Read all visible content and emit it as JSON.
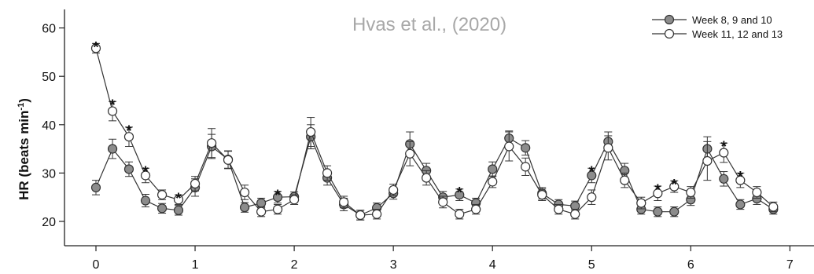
{
  "chart_data": {
    "type": "line",
    "title": "",
    "source_note": "Hvas et al., (2020)",
    "ylabel_main": "HR (beats min",
    "ylabel_sup": "-1",
    "ylabel_close": ")",
    "xlabel": "",
    "xlim": [
      -0.3,
      7.2
    ],
    "ylim": [
      17,
      65
    ],
    "xticks": [
      0,
      1,
      2,
      3,
      4,
      5,
      6,
      7
    ],
    "yticks": [
      20,
      30,
      40,
      50,
      60
    ],
    "legend_position": "top-right",
    "series": [
      {
        "name": "Week 8, 9 and 10",
        "fill": "#8c8c8c",
        "x": [
          0,
          0.167,
          0.333,
          0.5,
          0.667,
          0.833,
          1.0,
          1.167,
          1.333,
          1.5,
          1.667,
          1.833,
          2.0,
          2.167,
          2.333,
          2.5,
          2.667,
          2.833,
          3.0,
          3.167,
          3.333,
          3.5,
          3.667,
          3.833,
          4.0,
          4.167,
          4.333,
          4.5,
          4.667,
          4.833,
          5.0,
          5.167,
          5.333,
          5.5,
          5.667,
          5.833,
          6.0,
          6.167,
          6.333,
          6.5,
          6.667,
          6.833
        ],
        "y": [
          27,
          35,
          30.8,
          24.3,
          22.7,
          22.3,
          27,
          35.5,
          32.8,
          22.9,
          23.8,
          25,
          25.1,
          37.5,
          29,
          23.5,
          21.3,
          22.8,
          25.8,
          36,
          30.5,
          25,
          25.5,
          23.8,
          30.8,
          37.2,
          35.2,
          25.8,
          23.5,
          23.2,
          29.5,
          36.5,
          30.5,
          22.5,
          22,
          22,
          24.5,
          35,
          28.8,
          23.5,
          24.7,
          22.5
        ],
        "err": [
          1.5,
          2,
          1.5,
          1.3,
          1,
          1,
          1.8,
          2.5,
          1.8,
          1,
          1,
          1.2,
          1,
          2.5,
          1.5,
          1.3,
          1,
          1,
          1.2,
          2.5,
          1.5,
          1.2,
          1.2,
          1,
          1.5,
          1.5,
          1.5,
          1.2,
          1,
          1,
          1.5,
          2,
          1.5,
          1,
          1,
          1,
          1.2,
          2.5,
          1.5,
          1,
          1.2,
          1
        ]
      },
      {
        "name": "Week 11, 12 and 13",
        "fill": "#ffffff",
        "x": [
          0,
          0.167,
          0.333,
          0.5,
          0.667,
          0.833,
          1.0,
          1.167,
          1.333,
          1.5,
          1.667,
          1.833,
          2.0,
          2.167,
          2.333,
          2.5,
          2.667,
          2.833,
          3.0,
          3.167,
          3.333,
          3.5,
          3.667,
          3.833,
          4.0,
          4.167,
          4.333,
          4.5,
          4.667,
          4.833,
          5.0,
          5.167,
          5.333,
          5.5,
          5.667,
          5.833,
          6.0,
          6.167,
          6.333,
          6.5,
          6.667,
          6.833
        ],
        "y": [
          55.8,
          42.8,
          37.5,
          29.5,
          25.5,
          24.5,
          27.8,
          36.2,
          32.7,
          26,
          22,
          22.5,
          24.5,
          38.5,
          30,
          24,
          21.3,
          21.5,
          26.5,
          34,
          29,
          24,
          21.5,
          22.5,
          28.2,
          35.5,
          31.3,
          25.5,
          22.5,
          21.5,
          25,
          35.2,
          28.5,
          23.8,
          25.8,
          27.2,
          26,
          32.5,
          34.2,
          28.5,
          26,
          23
        ],
        "err": [
          1,
          2,
          2,
          1.5,
          1,
          1,
          1.5,
          3,
          1.8,
          1.5,
          1,
          1,
          1,
          3,
          1.5,
          1.2,
          1,
          1,
          1.2,
          2.5,
          1.5,
          1.2,
          1,
          1,
          1.2,
          3,
          1.8,
          1.2,
          1,
          1,
          1.5,
          2.5,
          1.5,
          1.2,
          1.5,
          1.2,
          1.2,
          4,
          2,
          1.5,
          1.2,
          1
        ]
      }
    ],
    "significance": [
      {
        "label": "*",
        "x": 0,
        "y": 56.8
      },
      {
        "label": "*",
        "x": 0.167,
        "y": 44.8
      },
      {
        "label": "*",
        "x": 0.333,
        "y": 39.5
      },
      {
        "label": "*",
        "x": 0.5,
        "y": 31
      },
      {
        "label": "*",
        "x": 0.833,
        "y": 25.5
      },
      {
        "label": "*",
        "x": 1.833,
        "y": 26.2
      },
      {
        "label": "*",
        "x": 3.667,
        "y": 26.7
      },
      {
        "label": "*",
        "x": 5.0,
        "y": 31
      },
      {
        "label": "*",
        "x": 5.667,
        "y": 27.3
      },
      {
        "label": "*",
        "x": 5.833,
        "y": 28.4
      },
      {
        "label": "*",
        "x": 6.333,
        "y": 36.2
      },
      {
        "label": "*",
        "x": 6.5,
        "y": 30
      }
    ]
  }
}
